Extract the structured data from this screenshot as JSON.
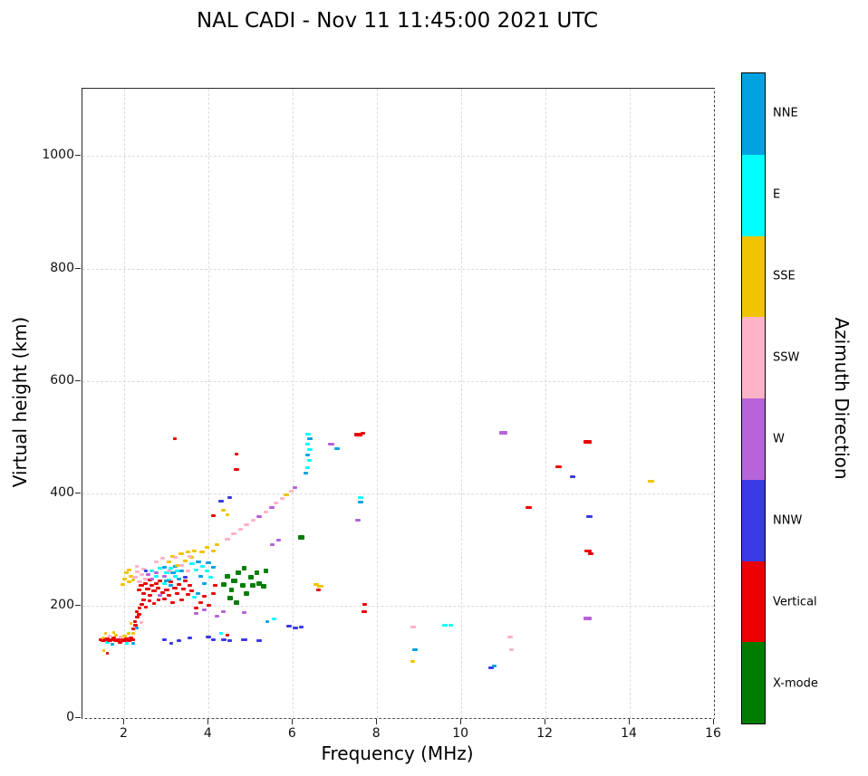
{
  "chart_data": {
    "type": "scatter",
    "title": "NAL CADI - Nov 11 11:45:00 2021 UTC",
    "xlabel": "Frequency (MHz)",
    "ylabel": "Virtual height (km)",
    "xlim": [
      1,
      16
    ],
    "ylim": [
      0,
      1120
    ],
    "x_ticks": [
      2,
      4,
      6,
      8,
      10,
      12,
      14,
      16
    ],
    "y_ticks": [
      0,
      200,
      400,
      600,
      800,
      1000
    ],
    "grid": true,
    "marker": "horizontal-dash",
    "colorbar": {
      "label": "Azimuth Direction",
      "position": "right",
      "categories": [
        {
          "key": "NNE",
          "label": "NNE",
          "color": "#00a2e0"
        },
        {
          "key": "E",
          "label": "E",
          "color": "#00ffff"
        },
        {
          "key": "SSE",
          "label": "SSE",
          "color": "#f0c400"
        },
        {
          "key": "SSW",
          "label": "SSW",
          "color": "#ffb3c6"
        },
        {
          "key": "W",
          "label": "W",
          "color": "#b763d9"
        },
        {
          "key": "NNW",
          "label": "NNW",
          "color": "#3a3ae6"
        },
        {
          "key": "V",
          "label": "Vertical",
          "color": "#ea0000"
        },
        {
          "key": "X",
          "label": "X-mode",
          "color": "#007d00"
        }
      ]
    },
    "points_format": [
      "frequency_MHz",
      "virtual_height_km",
      "azimuth_key",
      "echo_width_px"
    ],
    "points": [
      [
        1.45,
        140,
        "V",
        5
      ],
      [
        1.5,
        137,
        "V",
        6
      ],
      [
        1.5,
        143,
        "SSE",
        4
      ],
      [
        1.5,
        120,
        "SSE",
        3
      ],
      [
        1.55,
        139,
        "V",
        5
      ],
      [
        1.55,
        150,
        "SSE",
        3
      ],
      [
        1.6,
        134,
        "E",
        5
      ],
      [
        1.6,
        141,
        "V",
        5
      ],
      [
        1.6,
        115,
        "V",
        3
      ],
      [
        1.65,
        137,
        "V",
        6
      ],
      [
        1.65,
        146,
        "SSW",
        4
      ],
      [
        1.7,
        139,
        "V",
        5
      ],
      [
        1.7,
        132,
        "NNE",
        4
      ],
      [
        1.75,
        142,
        "V",
        5
      ],
      [
        1.75,
        152,
        "SSE",
        3
      ],
      [
        1.8,
        137,
        "V",
        6
      ],
      [
        1.8,
        148,
        "SSE",
        4
      ],
      [
        1.85,
        140,
        "V",
        5
      ],
      [
        1.9,
        135,
        "V",
        5
      ],
      [
        1.9,
        144,
        "SSW",
        4
      ],
      [
        1.95,
        139,
        "V",
        5
      ],
      [
        2.0,
        137,
        "V",
        6
      ],
      [
        2.0,
        146,
        "SSE",
        5
      ],
      [
        2.05,
        141,
        "V",
        5
      ],
      [
        2.05,
        133,
        "E",
        4
      ],
      [
        2.1,
        138,
        "V",
        5
      ],
      [
        2.1,
        150,
        "SSE",
        4
      ],
      [
        2.15,
        143,
        "V",
        5
      ],
      [
        2.2,
        139,
        "V",
        5
      ],
      [
        2.2,
        133,
        "NNE",
        4
      ],
      [
        2.2,
        150,
        "SSE",
        4
      ],
      [
        2.2,
        158,
        "V",
        4
      ],
      [
        2.25,
        165,
        "V",
        5
      ],
      [
        2.25,
        172,
        "V",
        4
      ],
      [
        2.3,
        180,
        "V",
        5
      ],
      [
        2.3,
        190,
        "V",
        4
      ],
      [
        2.35,
        185,
        "V",
        5
      ],
      [
        2.35,
        196,
        "V",
        4
      ],
      [
        2.4,
        203,
        "V",
        5
      ],
      [
        2.45,
        210,
        "V",
        5
      ],
      [
        2.5,
        198,
        "V",
        4
      ],
      [
        2.15,
        168,
        "SSE",
        3
      ],
      [
        2.3,
        160,
        "NNE",
        4
      ],
      [
        2.4,
        170,
        "SSW",
        4
      ],
      [
        1.95,
        238,
        "SSE",
        5
      ],
      [
        2.0,
        248,
        "SSE",
        5
      ],
      [
        2.05,
        258,
        "SSE",
        5
      ],
      [
        2.1,
        243,
        "SSE",
        5
      ],
      [
        2.15,
        252,
        "SSE",
        5
      ],
      [
        2.1,
        264,
        "SSE",
        5
      ],
      [
        2.2,
        246,
        "SSE",
        4
      ],
      [
        2.25,
        250,
        "SSW",
        6
      ],
      [
        2.3,
        260,
        "SSW",
        5
      ],
      [
        2.35,
        242,
        "SSW",
        6
      ],
      [
        2.4,
        255,
        "SSW",
        5
      ],
      [
        2.45,
        265,
        "SSW",
        5
      ],
      [
        2.5,
        248,
        "SSW",
        5
      ],
      [
        2.3,
        270,
        "SSW",
        4
      ],
      [
        2.35,
        228,
        "V",
        5
      ],
      [
        2.4,
        236,
        "V",
        6
      ],
      [
        2.45,
        222,
        "V",
        5
      ],
      [
        2.5,
        240,
        "V",
        5
      ],
      [
        2.55,
        230,
        "V",
        6
      ],
      [
        2.6,
        245,
        "V",
        5
      ],
      [
        2.6,
        218,
        "V",
        5
      ],
      [
        2.65,
        236,
        "V",
        5
      ],
      [
        2.7,
        226,
        "V",
        6
      ],
      [
        2.75,
        240,
        "V",
        5
      ],
      [
        2.8,
        232,
        "V",
        5
      ],
      [
        2.85,
        244,
        "V",
        5
      ],
      [
        2.9,
        224,
        "V",
        5
      ],
      [
        2.6,
        208,
        "V",
        4
      ],
      [
        2.7,
        204,
        "V",
        4
      ],
      [
        2.8,
        210,
        "V",
        4
      ],
      [
        2.55,
        255,
        "W",
        5
      ],
      [
        2.65,
        248,
        "W",
        5
      ],
      [
        2.75,
        258,
        "W",
        5
      ],
      [
        2.85,
        218,
        "W",
        5
      ],
      [
        2.95,
        252,
        "W",
        5
      ],
      [
        2.65,
        262,
        "E",
        5
      ],
      [
        2.75,
        252,
        "E",
        5
      ],
      [
        2.85,
        266,
        "E",
        5
      ],
      [
        2.95,
        240,
        "E",
        5
      ],
      [
        3.0,
        258,
        "E",
        6
      ],
      [
        3.05,
        246,
        "E",
        5
      ],
      [
        3.1,
        266,
        "E",
        5
      ],
      [
        3.2,
        252,
        "E",
        5
      ],
      [
        3.25,
        262,
        "E",
        5
      ],
      [
        2.95,
        268,
        "NNE",
        5
      ],
      [
        3.0,
        244,
        "NNE",
        5
      ],
      [
        3.1,
        236,
        "NNE",
        5
      ],
      [
        3.15,
        258,
        "NNE",
        6
      ],
      [
        3.2,
        270,
        "NNE",
        5
      ],
      [
        3.3,
        248,
        "NNE",
        5
      ],
      [
        3.35,
        262,
        "NNE",
        5
      ],
      [
        2.95,
        212,
        "V",
        5
      ],
      [
        3.0,
        228,
        "V",
        6
      ],
      [
        3.05,
        218,
        "V",
        5
      ],
      [
        3.1,
        242,
        "V",
        5
      ],
      [
        3.15,
        206,
        "V",
        5
      ],
      [
        3.2,
        232,
        "V",
        6
      ],
      [
        3.25,
        222,
        "V",
        5
      ],
      [
        3.3,
        238,
        "V",
        5
      ],
      [
        3.35,
        210,
        "V",
        5
      ],
      [
        3.4,
        230,
        "V",
        5
      ],
      [
        3.45,
        244,
        "V",
        5
      ],
      [
        3.5,
        220,
        "V",
        5
      ],
      [
        3.55,
        236,
        "V",
        5
      ],
      [
        3.6,
        226,
        "V",
        5
      ],
      [
        3.05,
        278,
        "SSE",
        5
      ],
      [
        3.15,
        288,
        "SSE",
        5
      ],
      [
        3.25,
        272,
        "SSE",
        5
      ],
      [
        3.35,
        292,
        "SSE",
        6
      ],
      [
        3.45,
        280,
        "SSE",
        5
      ],
      [
        3.5,
        296,
        "SSE",
        5
      ],
      [
        3.6,
        286,
        "SSE",
        5
      ],
      [
        3.65,
        298,
        "SSE",
        5
      ],
      [
        2.75,
        278,
        "SSW",
        5
      ],
      [
        2.9,
        284,
        "SSW",
        5
      ],
      [
        3.05,
        262,
        "SSW",
        5
      ],
      [
        3.2,
        286,
        "SSW",
        5
      ],
      [
        3.35,
        272,
        "SSW",
        5
      ],
      [
        3.5,
        262,
        "SSW",
        5
      ],
      [
        3.55,
        288,
        "SSW",
        5
      ],
      [
        3.45,
        250,
        "NNW",
        5
      ],
      [
        2.5,
        262,
        "NNW",
        4
      ],
      [
        3.6,
        275,
        "E",
        6
      ],
      [
        3.7,
        264,
        "E",
        5
      ],
      [
        3.75,
        278,
        "NNE",
        6
      ],
      [
        3.8,
        252,
        "NNE",
        5
      ],
      [
        3.85,
        270,
        "E",
        5
      ],
      [
        3.9,
        240,
        "NNE",
        5
      ],
      [
        3.95,
        262,
        "E",
        5
      ],
      [
        4.0,
        276,
        "NNE",
        6
      ],
      [
        4.05,
        250,
        "E",
        5
      ],
      [
        4.1,
        268,
        "NNE",
        5
      ],
      [
        3.65,
        215,
        "E",
        5
      ],
      [
        3.75,
        222,
        "NNE",
        5
      ],
      [
        3.7,
        196,
        "V",
        5
      ],
      [
        3.8,
        206,
        "V",
        5
      ],
      [
        3.9,
        216,
        "V",
        5
      ],
      [
        4.0,
        200,
        "V",
        5
      ],
      [
        4.1,
        222,
        "V",
        5
      ],
      [
        4.15,
        236,
        "V",
        5
      ],
      [
        3.85,
        296,
        "SSE",
        6
      ],
      [
        3.95,
        304,
        "SSE",
        5
      ],
      [
        4.1,
        298,
        "SSE",
        5
      ],
      [
        4.2,
        308,
        "SSE",
        5
      ],
      [
        3.7,
        186,
        "W",
        5
      ],
      [
        3.9,
        192,
        "W",
        5
      ],
      [
        4.2,
        182,
        "W",
        5
      ],
      [
        4.35,
        190,
        "W",
        5
      ],
      [
        4.85,
        188,
        "W",
        5
      ],
      [
        2.95,
        140,
        "NNW",
        5
      ],
      [
        3.1,
        133,
        "NNW",
        4
      ],
      [
        3.3,
        137,
        "NNW",
        5
      ],
      [
        3.55,
        142,
        "NNW",
        5
      ],
      [
        4.0,
        144,
        "NNW",
        6
      ],
      [
        4.1,
        140,
        "NNW",
        5
      ],
      [
        4.35,
        140,
        "NNW",
        6
      ],
      [
        4.5,
        138,
        "NNW",
        5
      ],
      [
        4.85,
        140,
        "NNW",
        7
      ],
      [
        5.2,
        138,
        "NNW",
        6
      ],
      [
        4.3,
        150,
        "E",
        4
      ],
      [
        4.45,
        147,
        "V",
        4
      ],
      [
        5.4,
        172,
        "NNE",
        4
      ],
      [
        5.55,
        176,
        "E",
        5
      ],
      [
        4.35,
        238,
        "X",
        6
      ],
      [
        4.45,
        252,
        "X",
        6
      ],
      [
        4.5,
        214,
        "X",
        6
      ],
      [
        4.55,
        228,
        "X",
        5
      ],
      [
        4.6,
        244,
        "X",
        7
      ],
      [
        4.65,
        206,
        "X",
        6
      ],
      [
        4.7,
        258,
        "X",
        6
      ],
      [
        4.8,
        236,
        "X",
        6
      ],
      [
        4.85,
        266,
        "X",
        5
      ],
      [
        4.9,
        222,
        "X",
        6
      ],
      [
        5.0,
        250,
        "X",
        6
      ],
      [
        5.05,
        236,
        "X",
        6
      ],
      [
        5.15,
        258,
        "X",
        5
      ],
      [
        5.2,
        240,
        "X",
        6
      ],
      [
        5.3,
        234,
        "X",
        6
      ],
      [
        5.35,
        262,
        "X",
        5
      ],
      [
        6.2,
        322,
        "X",
        7
      ],
      [
        4.45,
        318,
        "SSW",
        6
      ],
      [
        4.6,
        328,
        "SSW",
        6
      ],
      [
        4.75,
        336,
        "SSW",
        5
      ],
      [
        4.9,
        344,
        "SSW",
        6
      ],
      [
        5.05,
        352,
        "SSW",
        5
      ],
      [
        5.2,
        358,
        "W",
        6
      ],
      [
        5.35,
        366,
        "SSW",
        5
      ],
      [
        5.5,
        374,
        "W",
        6
      ],
      [
        5.6,
        382,
        "SSW",
        5
      ],
      [
        5.75,
        390,
        "SSW",
        5
      ],
      [
        5.85,
        398,
        "SSE",
        6
      ],
      [
        5.95,
        404,
        "SSW",
        5
      ],
      [
        6.05,
        410,
        "W",
        5
      ],
      [
        5.5,
        308,
        "W",
        5
      ],
      [
        5.65,
        316,
        "W",
        5
      ],
      [
        4.35,
        370,
        "SSE",
        5
      ],
      [
        4.45,
        362,
        "SSE",
        4
      ],
      [
        4.3,
        386,
        "NNW",
        6
      ],
      [
        4.5,
        392,
        "NNW",
        5
      ],
      [
        3.2,
        497,
        "V",
        4
      ],
      [
        4.65,
        470,
        "V",
        4
      ],
      [
        4.65,
        443,
        "V",
        6
      ],
      [
        4.1,
        360,
        "V",
        5
      ],
      [
        6.35,
        505,
        "E",
        6
      ],
      [
        6.4,
        497,
        "NNE",
        6
      ],
      [
        6.35,
        488,
        "E",
        5
      ],
      [
        6.4,
        478,
        "E",
        6
      ],
      [
        6.35,
        468,
        "NNE",
        5
      ],
      [
        6.4,
        458,
        "E",
        5
      ],
      [
        6.35,
        445,
        "E",
        5
      ],
      [
        6.3,
        436,
        "NNE",
        5
      ],
      [
        6.9,
        487,
        "W",
        7
      ],
      [
        7.05,
        480,
        "NNE",
        6
      ],
      [
        7.55,
        505,
        "V",
        9
      ],
      [
        7.65,
        507,
        "V",
        5
      ],
      [
        7.6,
        392,
        "E",
        6
      ],
      [
        7.6,
        384,
        "NNE",
        6
      ],
      [
        7.55,
        352,
        "W",
        6
      ],
      [
        7.7,
        202,
        "V",
        5
      ],
      [
        7.7,
        189,
        "V",
        6
      ],
      [
        6.55,
        238,
        "SSE",
        6
      ],
      [
        6.65,
        234,
        "SSE",
        7
      ],
      [
        6.6,
        228,
        "V",
        5
      ],
      [
        5.9,
        163,
        "NNW",
        6
      ],
      [
        6.05,
        160,
        "NNW",
        6
      ],
      [
        6.2,
        162,
        "NNW",
        5
      ],
      [
        8.85,
        162,
        "SSW",
        6
      ],
      [
        8.9,
        122,
        "NNE",
        6
      ],
      [
        8.85,
        100,
        "SSE",
        5
      ],
      [
        9.6,
        165,
        "E",
        6
      ],
      [
        9.75,
        165,
        "E",
        5
      ],
      [
        10.7,
        90,
        "NNW",
        6
      ],
      [
        10.78,
        93,
        "NNE",
        5
      ],
      [
        11.0,
        508,
        "W",
        9
      ],
      [
        11.15,
        145,
        "SSW",
        6
      ],
      [
        11.2,
        122,
        "SSW",
        5
      ],
      [
        11.6,
        375,
        "V",
        7
      ],
      [
        12.3,
        447,
        "V",
        7
      ],
      [
        12.65,
        430,
        "NNW",
        6
      ],
      [
        13.0,
        492,
        "V",
        9
      ],
      [
        13.05,
        358,
        "NNW",
        7
      ],
      [
        13.0,
        297,
        "V",
        8
      ],
      [
        13.07,
        292,
        "V",
        6
      ],
      [
        13.0,
        178,
        "W",
        9
      ],
      [
        14.5,
        422,
        "SSE",
        7
      ]
    ]
  }
}
